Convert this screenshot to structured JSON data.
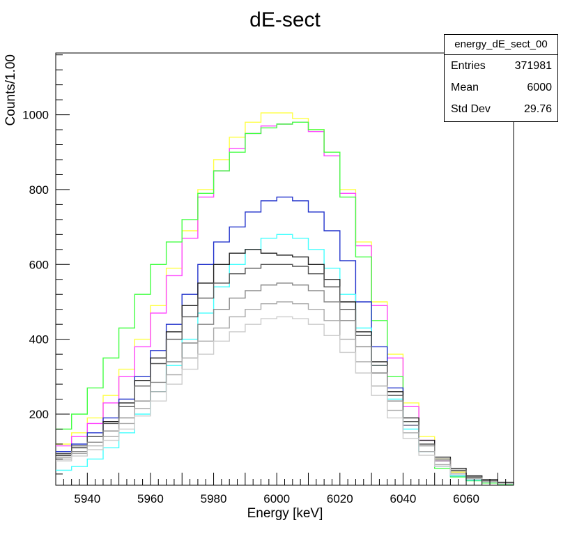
{
  "chart_data": {
    "type": "line",
    "title": "dE-sect",
    "xlabel": "Energy [keV]",
    "ylabel": "Counts/1.00",
    "xlim": [
      5930,
      6075
    ],
    "ylim": [
      10,
      1165
    ],
    "x_ticks": [
      5940,
      5960,
      5980,
      6000,
      6020,
      6040,
      6060
    ],
    "y_ticks": [
      200,
      400,
      600,
      800,
      1000
    ],
    "grid": false,
    "step": true,
    "x": [
      5930,
      5935,
      5940,
      5945,
      5950,
      5955,
      5960,
      5965,
      5970,
      5975,
      5980,
      5985,
      5990,
      5995,
      6000,
      6005,
      6010,
      6015,
      6020,
      6025,
      6030,
      6035,
      6040,
      6045,
      6050,
      6055,
      6060,
      6065,
      6070,
      6075
    ],
    "series": [
      {
        "color": "#ffff44",
        "values": [
          120,
          150,
          190,
          250,
          320,
          400,
          490,
          590,
          690,
          800,
          880,
          940,
          980,
          1005,
          1005,
          990,
          960,
          900,
          800,
          660,
          500,
          360,
          230,
          140,
          80,
          45,
          30,
          20,
          15,
          12
        ]
      },
      {
        "color": "#ff44ff",
        "values": [
          115,
          140,
          175,
          230,
          300,
          380,
          470,
          570,
          670,
          780,
          850,
          910,
          950,
          970,
          975,
          980,
          955,
          890,
          790,
          650,
          490,
          350,
          220,
          130,
          75,
          42,
          28,
          20,
          15,
          12
        ]
      },
      {
        "color": "#44ff44",
        "values": [
          160,
          200,
          270,
          350,
          430,
          520,
          600,
          660,
          720,
          790,
          850,
          900,
          950,
          965,
          975,
          980,
          960,
          900,
          780,
          620,
          450,
          300,
          180,
          100,
          55,
          32,
          22,
          16,
          12,
          10
        ]
      },
      {
        "color": "#2233cc",
        "values": [
          100,
          120,
          150,
          190,
          240,
          300,
          370,
          440,
          520,
          600,
          660,
          700,
          740,
          770,
          780,
          770,
          740,
          690,
          610,
          500,
          380,
          270,
          170,
          100,
          60,
          35,
          24,
          18,
          14,
          11
        ]
      },
      {
        "color": "#44ffff",
        "values": [
          50,
          60,
          80,
          110,
          150,
          200,
          260,
          330,
          400,
          470,
          540,
          600,
          640,
          670,
          680,
          670,
          640,
          590,
          520,
          430,
          330,
          240,
          160,
          100,
          60,
          35,
          24,
          18,
          14,
          11
        ]
      },
      {
        "color": "#222222",
        "values": [
          90,
          110,
          140,
          180,
          230,
          290,
          350,
          420,
          490,
          550,
          600,
          630,
          640,
          630,
          625,
          620,
          600,
          560,
          500,
          420,
          340,
          260,
          190,
          130,
          85,
          55,
          35,
          25,
          18,
          14
        ]
      },
      {
        "color": "#555555",
        "values": [
          95,
          115,
          140,
          175,
          220,
          275,
          335,
          400,
          460,
          510,
          550,
          575,
          590,
          600,
          600,
          595,
          575,
          540,
          480,
          410,
          330,
          250,
          180,
          120,
          80,
          50,
          32,
          22,
          16,
          12
        ]
      },
      {
        "color": "#888888",
        "values": [
          85,
          100,
          125,
          155,
          190,
          235,
          285,
          340,
          390,
          440,
          480,
          510,
          530,
          545,
          550,
          545,
          530,
          500,
          450,
          380,
          310,
          235,
          170,
          115,
          75,
          48,
          30,
          20,
          15,
          12
        ]
      },
      {
        "color": "#aaaaaa",
        "values": [
          80,
          95,
          115,
          140,
          175,
          215,
          260,
          305,
          350,
          395,
          430,
          460,
          480,
          495,
          500,
          495,
          480,
          450,
          400,
          340,
          275,
          210,
          150,
          100,
          65,
          42,
          28,
          20,
          15,
          12
        ]
      },
      {
        "color": "#cccccc",
        "values": [
          75,
          88,
          105,
          130,
          160,
          195,
          235,
          280,
          320,
          360,
          395,
          420,
          440,
          455,
          460,
          455,
          440,
          410,
          365,
          310,
          250,
          190,
          135,
          90,
          60,
          38,
          26,
          18,
          14,
          11
        ]
      }
    ]
  },
  "stats": {
    "name": "energy_dE_sect_00",
    "entries_label": "Entries",
    "entries": "371981",
    "mean_label": "Mean",
    "mean": "6000",
    "stddev_label": "Std Dev",
    "stddev": "29.76"
  }
}
